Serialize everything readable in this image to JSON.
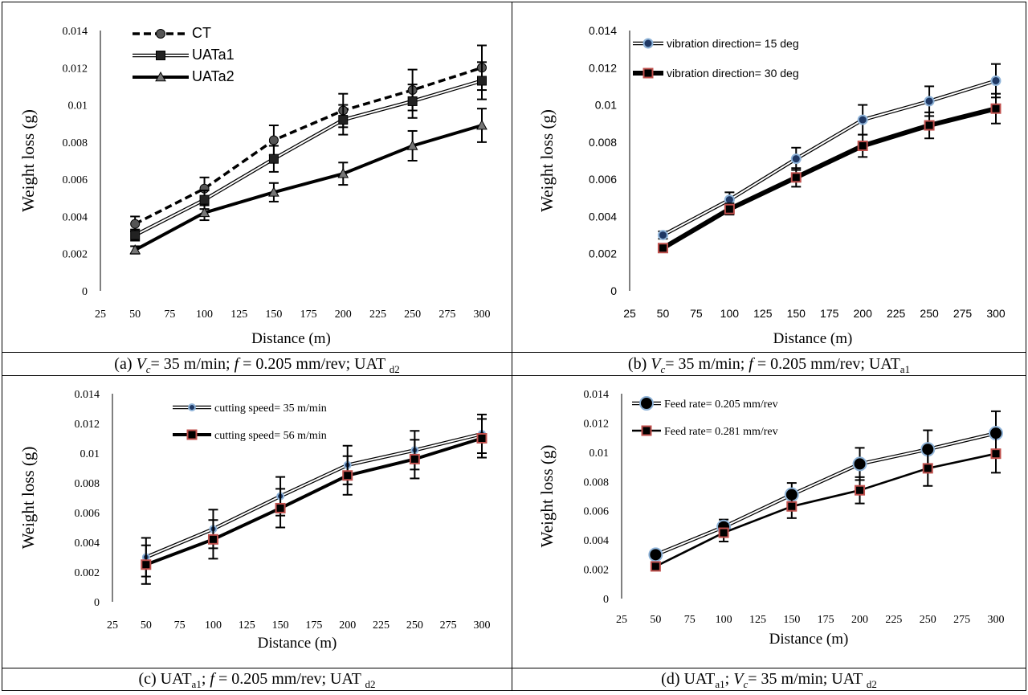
{
  "chart_data": [
    {
      "type": "line",
      "panel": "a",
      "x": [
        50,
        100,
        150,
        200,
        250,
        300
      ],
      "xticks": [
        "25",
        "50",
        "75",
        "100",
        "125",
        "150",
        "175",
        "200",
        "225",
        "250",
        "275",
        "300"
      ],
      "yticks": [
        "0",
        "0.002",
        "0.004",
        "0.006",
        "0.008",
        "0.01",
        "0.012",
        "0.014"
      ],
      "xlabel": "Distance (m)",
      "ylabel": "Weight loss (g)",
      "xlim": [
        25,
        300
      ],
      "ylim": [
        0,
        0.014
      ],
      "legend_position": "top-left",
      "legend_font": "serif-large",
      "series": [
        {
          "name": "CT",
          "values": [
            0.0036,
            0.0055,
            0.0081,
            0.0097,
            0.0108,
            0.012
          ],
          "errors": [
            0.0004,
            0.0006,
            0.0008,
            0.0009,
            0.0011,
            0.0012
          ],
          "style": "dashed",
          "marker": "circle",
          "color": "#000000",
          "marker_fill": "#555555"
        },
        {
          "name": "UATa1",
          "values": [
            0.003,
            0.0049,
            0.0071,
            0.0092,
            0.0102,
            0.0113
          ],
          "errors": [
            0.0003,
            0.0005,
            0.0007,
            0.0008,
            0.0009,
            0.001
          ],
          "style": "double",
          "marker": "square",
          "color": "#000000",
          "marker_fill": "#222222"
        },
        {
          "name": "UATa2",
          "values": [
            0.0022,
            0.0042,
            0.0053,
            0.0063,
            0.0078,
            0.0089
          ],
          "errors": [
            0.0002,
            0.0004,
            0.0005,
            0.0006,
            0.0008,
            0.0009
          ],
          "style": "solid-thick",
          "marker": "triangle",
          "color": "#000000",
          "marker_fill": "#777777"
        }
      ]
    },
    {
      "type": "line",
      "panel": "b",
      "x": [
        50,
        100,
        150,
        200,
        250,
        300
      ],
      "xticks": [
        "25",
        "50",
        "75",
        "100",
        "125",
        "150",
        "175",
        "200",
        "225",
        "250",
        "275",
        "300"
      ],
      "yticks": [
        "0",
        "0.002",
        "0.004",
        "0.006",
        "0.008",
        "0.01",
        "0.012",
        "0.014"
      ],
      "xlabel": "Distance (m)",
      "ylabel": "Weight loss (g)",
      "xlim": [
        25,
        300
      ],
      "ylim": [
        0,
        0.014
      ],
      "legend_position": "top-left",
      "legend_font": "sans-small",
      "series": [
        {
          "name": "vibration direction= 15 deg",
          "values": [
            0.003,
            0.0049,
            0.0071,
            0.0092,
            0.0102,
            0.0113
          ],
          "errors": [
            0.0002,
            0.0004,
            0.0006,
            0.0008,
            0.0008,
            0.0009
          ],
          "style": "double",
          "marker": "circle",
          "color": "#000000",
          "marker_fill": "#1f3864",
          "marker_edge": "#8fb4d9"
        },
        {
          "name": "vibration direction= 30 deg",
          "values": [
            0.0023,
            0.0044,
            0.0061,
            0.0078,
            0.0089,
            0.0098
          ],
          "errors": [
            0.0002,
            0.0003,
            0.0005,
            0.0006,
            0.0007,
            0.0008
          ],
          "style": "solid-xthick",
          "marker": "square",
          "color": "#000000",
          "marker_fill": "#000000",
          "marker_edge": "#c0504d"
        }
      ]
    },
    {
      "type": "line",
      "panel": "c",
      "x": [
        50,
        100,
        150,
        200,
        250,
        300
      ],
      "xticks": [
        "25",
        "50",
        "75",
        "100",
        "125",
        "150",
        "175",
        "200",
        "225",
        "250",
        "275",
        "300"
      ],
      "yticks": [
        "0",
        "0.002",
        "0.004",
        "0.006",
        "0.008",
        "0.01",
        "0.012",
        "0.014"
      ],
      "xlabel": "Distance (m)",
      "ylabel": "Weight loss (g)",
      "xlim": [
        25,
        300
      ],
      "ylim": [
        0,
        0.014
      ],
      "legend_position": "top-left",
      "legend_font": "serif-small",
      "series": [
        {
          "name": "cutting speed= 35 m/min",
          "values": [
            0.003,
            0.0049,
            0.0071,
            0.0092,
            0.0102,
            0.0113
          ],
          "errors": [
            0.0013,
            0.0013,
            0.0013,
            0.0013,
            0.0013,
            0.0013
          ],
          "style": "double",
          "marker": "circle-small",
          "color": "#000000",
          "marker_fill": "#1f3864",
          "marker_edge": "#8fb4d9"
        },
        {
          "name": "cutting speed= 56 m/min",
          "values": [
            0.0025,
            0.0042,
            0.0063,
            0.0085,
            0.0096,
            0.011
          ],
          "errors": [
            0.0013,
            0.0013,
            0.0013,
            0.0013,
            0.0013,
            0.0013
          ],
          "style": "solid-thick",
          "marker": "square",
          "color": "#000000",
          "marker_fill": "#000000",
          "marker_edge": "#c0504d"
        }
      ]
    },
    {
      "type": "line",
      "panel": "d",
      "x": [
        50,
        100,
        150,
        200,
        250,
        300
      ],
      "xticks": [
        "25",
        "50",
        "75",
        "100",
        "125",
        "150",
        "175",
        "200",
        "225",
        "250",
        "275",
        "300"
      ],
      "yticks": [
        "0",
        "0.002",
        "0.004",
        "0.006",
        "0.008",
        "0.01",
        "0.012",
        "0.014"
      ],
      "xlabel": "Distance (m)",
      "ylabel": "Weight loss (g)",
      "xlim": [
        25,
        300
      ],
      "ylim": [
        0,
        0.014
      ],
      "legend_position": "top-left",
      "legend_font": "serif-small",
      "series": [
        {
          "name": "Feed rate= 0.205 mm/rev",
          "values": [
            0.003,
            0.0049,
            0.0071,
            0.0092,
            0.0102,
            0.0113
          ],
          "errors": [
            0.0003,
            0.0005,
            0.0008,
            0.0011,
            0.0013,
            0.0015
          ],
          "style": "double",
          "marker": "circle-large",
          "color": "#000000",
          "marker_fill": "#000000",
          "marker_edge": "#8fb4d9"
        },
        {
          "name": "Feed rate= 0.281 mm/rev",
          "values": [
            0.0022,
            0.0045,
            0.0063,
            0.0074,
            0.0089,
            0.0099
          ],
          "errors": [
            0.0002,
            0.0006,
            0.0008,
            0.0009,
            0.0012,
            0.0013
          ],
          "style": "solid",
          "marker": "square",
          "color": "#000000",
          "marker_fill": "#000000",
          "marker_edge": "#c0504d"
        }
      ]
    }
  ],
  "captions": {
    "a": {
      "p1": "(a) ",
      "vc": "V",
      "vc_sub": "c",
      "p2": "= 35 m/min; ",
      "f": "f",
      "p3": " = 0.205 mm/rev; UAT ",
      "sub": "d2"
    },
    "b": {
      "p1": "(b) ",
      "vc": "V",
      "vc_sub": "c",
      "p2": "= 35 m/min;  ",
      "f": "f",
      "p3": " = 0.205 mm/rev; UAT",
      "sub": "a1"
    },
    "c": {
      "p1": "(c) UAT",
      "sub1": "a1",
      "p2": "; ",
      "f": "f",
      "p3": " = 0.205 mm/rev; UAT ",
      "sub2": "d2"
    },
    "d": {
      "p1": "(d) UAT",
      "sub1": "a1",
      "p2": "; ",
      "vc": "V",
      "vc_sub": "c",
      "p3": "= 35 m/min; UAT ",
      "sub2": "d2"
    }
  }
}
